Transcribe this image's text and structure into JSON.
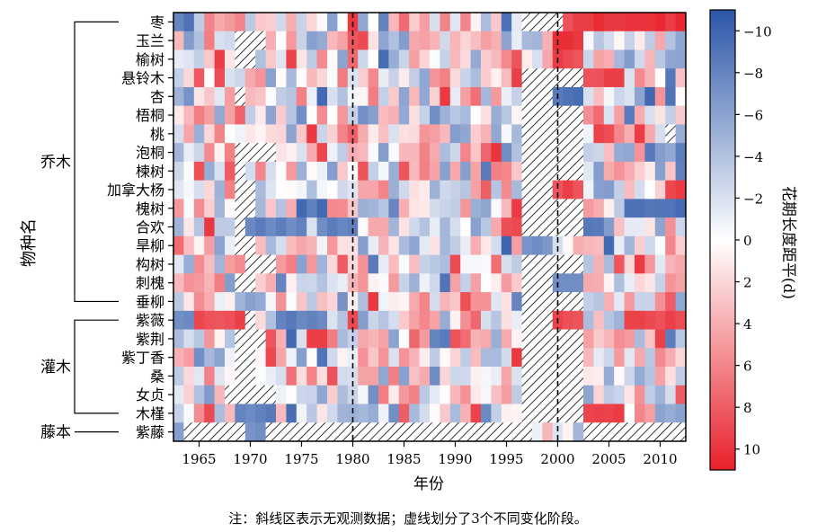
{
  "chart_data": {
    "type": "heatmap",
    "title": "",
    "xlabel": "年份",
    "ylabel": "物种名",
    "colorbar_label": "花期长度距平(d)",
    "colorbar_ticks": [
      -10,
      -8,
      -6,
      -4,
      -2,
      0,
      2,
      4,
      6,
      8,
      10
    ],
    "colorbar_range": [
      -11,
      11
    ],
    "colorbar_reversed": true,
    "x_range": [
      1963,
      2012
    ],
    "x_ticks": [
      1965,
      1970,
      1975,
      1980,
      1985,
      1990,
      1995,
      2000,
      2005,
      2010
    ],
    "dashed_lines_x": [
      1980,
      2000
    ],
    "note": "注：斜线区表示无观测数据；虚线划分了3个不同变化阶段。",
    "group_labels": [
      "乔木",
      "灌木",
      "藤本"
    ],
    "colors": {
      "negative": "#2b56a8",
      "neutral": "#ffffff",
      "positive": "#e8202a"
    },
    "species": [
      "枣",
      "玉兰",
      "榆树",
      "悬铃木",
      "杏",
      "梧桐",
      "桃",
      "泡桐",
      "楝树",
      "加拿大杨",
      "槐树",
      "合欢",
      "旱柳",
      "构树",
      "刺槐",
      "垂柳",
      "紫薇",
      "紫荆",
      "紫丁香",
      "桑",
      "女贞",
      "木槿",
      "紫藤"
    ],
    "row_data": [
      {
        "missing": [
          [
            1997,
            2000
          ]
        ],
        "hot": [
          [
            2000,
            2002,
            9
          ],
          [
            2003,
            2006,
            10
          ],
          [
            2007,
            2012,
            10
          ]
        ]
      },
      {
        "missing": [
          [
            1969,
            1971
          ]
        ],
        "hot": [
          [
            2000,
            2002,
            10
          ]
        ]
      },
      {
        "missing": [
          [
            1969,
            1970
          ]
        ],
        "hot": [
          [
            2000,
            2002,
            9
          ]
        ]
      },
      {
        "missing": [
          [
            1997,
            2002
          ]
        ],
        "hot": [
          [
            2003,
            2006,
            9
          ]
        ]
      },
      {
        "missing": [
          [
            1969,
            1969
          ],
          [
            1997,
            1999
          ]
        ],
        "hot": [
          [
            2000,
            2002,
            -9
          ]
        ]
      },
      {
        "missing": [
          [
            1997,
            2002
          ]
        ],
        "hot": []
      },
      {
        "missing": [
          [
            1997,
            2002
          ],
          [
            2011,
            2011
          ]
        ],
        "hot": [
          [
            2004,
            2005,
            9
          ]
        ]
      },
      {
        "missing": [
          [
            1969,
            1972
          ],
          [
            1997,
            2002
          ]
        ],
        "hot": []
      },
      {
        "missing": [
          [
            1969,
            1969
          ],
          [
            1997,
            2002
          ]
        ],
        "hot": []
      },
      {
        "missing": [
          [
            1969,
            1970
          ],
          [
            1997,
            1999
          ]
        ],
        "hot": [
          [
            2000,
            2002,
            9
          ]
        ]
      },
      {
        "missing": [
          [
            1969,
            1970
          ],
          [
            1997,
            2002
          ]
        ],
        "hot": [
          [
            2007,
            2012,
            -9
          ]
        ]
      },
      {
        "missing": [
          [
            1969,
            1969
          ],
          [
            1997,
            2002
          ]
        ],
        "hot": [
          [
            1970,
            1975,
            -8
          ],
          [
            1977,
            1980,
            -8
          ],
          [
            1995,
            1996,
            9
          ]
        ]
      },
      {
        "missing": [
          [
            1969,
            1970
          ]
        ],
        "hot": [
          [
            1997,
            1999,
            -7
          ]
        ]
      },
      {
        "missing": [
          [
            1970,
            1972
          ],
          [
            1997,
            2002
          ]
        ],
        "hot": []
      },
      {
        "missing": [
          [
            1969,
            1970
          ],
          [
            1997,
            1999
          ]
        ],
        "hot": [
          [
            2000,
            2001,
            -8
          ]
        ]
      },
      {
        "missing": [
          [
            1997,
            2002
          ]
        ],
        "hot": []
      },
      {
        "missing": [
          [
            1970,
            1970
          ],
          [
            1997,
            1999
          ]
        ],
        "hot": [
          [
            1963,
            1964,
            -8
          ],
          [
            1965,
            1969,
            9
          ],
          [
            1973,
            1977,
            -8
          ],
          [
            2000,
            2002,
            9
          ],
          [
            2007,
            2012,
            9
          ]
        ]
      },
      {
        "missing": [
          [
            1969,
            1971
          ],
          [
            1997,
            2002
          ]
        ],
        "hot": [
          [
            1976,
            1977,
            9
          ]
        ]
      },
      {
        "missing": [
          [
            1969,
            1970
          ],
          [
            1997,
            2002
          ]
        ],
        "hot": []
      },
      {
        "missing": [
          [
            1969,
            1970
          ],
          [
            1997,
            2002
          ]
        ],
        "hot": []
      },
      {
        "missing": [
          [
            1968,
            1972
          ],
          [
            1997,
            2002
          ]
        ],
        "hot": []
      },
      {
        "missing": [
          [
            1997,
            2002
          ]
        ],
        "hot": [
          [
            1969,
            1972,
            -8
          ],
          [
            2003,
            2006,
            9
          ]
        ]
      },
      {
        "missing": [
          [
            1964,
            1969
          ],
          [
            1972,
            1997
          ],
          [
            2003,
            2012
          ]
        ],
        "hot": [
          [
            1970,
            1971,
            -7
          ]
        ]
      }
    ]
  }
}
